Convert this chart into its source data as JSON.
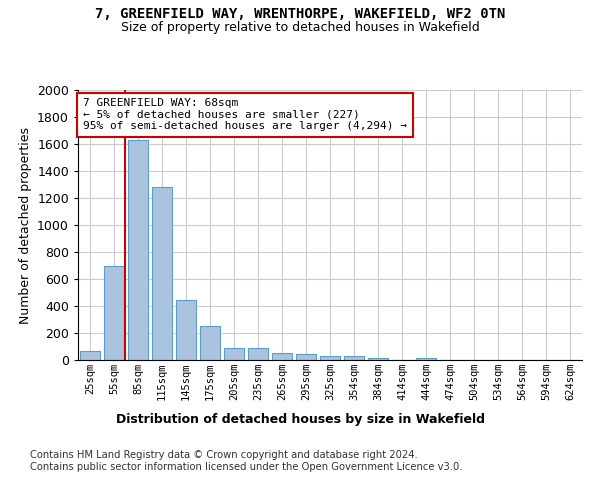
{
  "title": "7, GREENFIELD WAY, WRENTHORPE, WAKEFIELD, WF2 0TN",
  "subtitle": "Size of property relative to detached houses in Wakefield",
  "xlabel_bottom": "Distribution of detached houses by size in Wakefield",
  "ylabel": "Number of detached properties",
  "categories": [
    "25sqm",
    "55sqm",
    "85sqm",
    "115sqm",
    "145sqm",
    "175sqm",
    "205sqm",
    "235sqm",
    "265sqm",
    "295sqm",
    "325sqm",
    "354sqm",
    "384sqm",
    "414sqm",
    "444sqm",
    "474sqm",
    "504sqm",
    "534sqm",
    "564sqm",
    "594sqm",
    "624sqm"
  ],
  "values": [
    65,
    695,
    1630,
    1285,
    445,
    255,
    88,
    88,
    50,
    42,
    30,
    28,
    15,
    0,
    18,
    0,
    0,
    0,
    0,
    0,
    0
  ],
  "bar_color": "#aac4e0",
  "bar_edge_color": "#5a9fc9",
  "property_line_x": 1.45,
  "annotation_text": "7 GREENFIELD WAY: 68sqm\n← 5% of detached houses are smaller (227)\n95% of semi-detached houses are larger (4,294) →",
  "annotation_box_color": "#ffffff",
  "annotation_box_edge_color": "#cc0000",
  "vline_color": "#cc0000",
  "ylim": [
    0,
    2000
  ],
  "yticks": [
    0,
    200,
    400,
    600,
    800,
    1000,
    1200,
    1400,
    1600,
    1800,
    2000
  ],
  "footer_text": "Contains HM Land Registry data © Crown copyright and database right 2024.\nContains public sector information licensed under the Open Government Licence v3.0.",
  "background_color": "#ffffff",
  "grid_color": "#cccccc"
}
